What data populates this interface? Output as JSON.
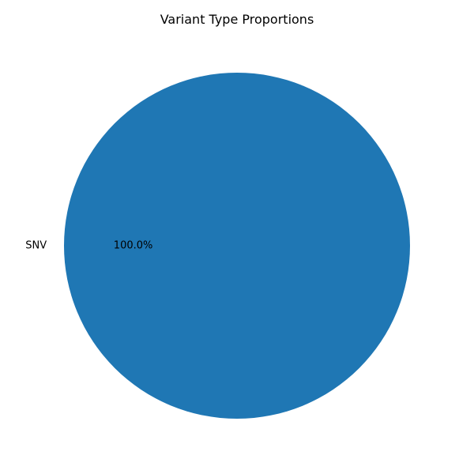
{
  "chart_data": {
    "type": "pie",
    "title": "Variant Type Proportions",
    "slices": [
      {
        "label": "SNV",
        "value": 100.0,
        "percent_label": "100.0%",
        "color": "#1f77b4"
      }
    ]
  }
}
